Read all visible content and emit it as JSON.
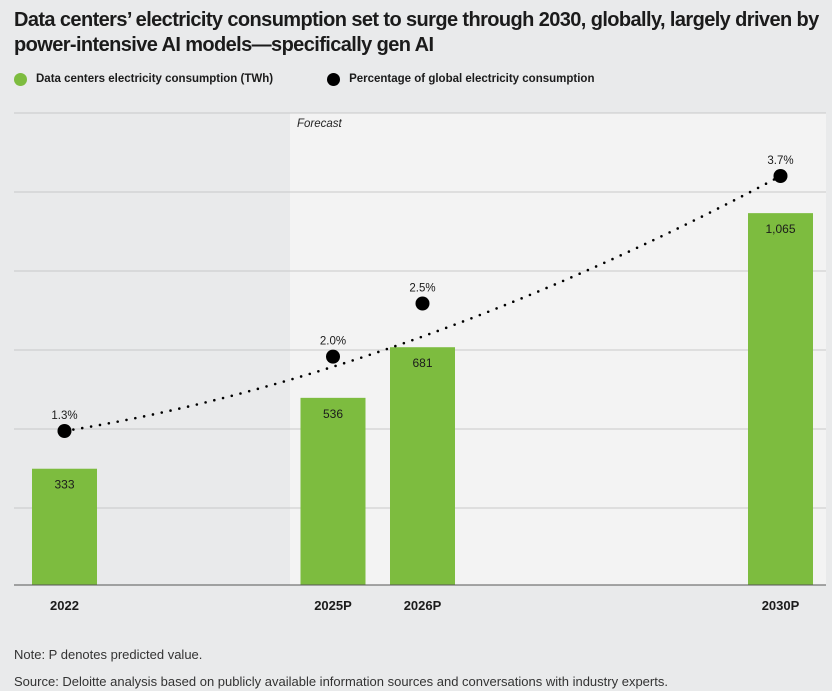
{
  "title": "Data centers’ electricity consumption set to surge through 2030, globally, largely driven by power-intensive AI models—specifically gen AI",
  "legend": {
    "bars": "Data centers electricity consumption (TWh)",
    "dots": "Percentage of global electricity consumption"
  },
  "colors": {
    "bar": "#7dbc3f",
    "dot": "#000000",
    "background": "#e9eaeb",
    "forecast_band": "#f3f3f3"
  },
  "forecast_label": "Forecast",
  "note": "Note: P denotes predicted value.",
  "source": "Source: Deloitte analysis based on publicly available information sources and conversations with industry experts.",
  "chart_data": {
    "type": "bar",
    "title": "Data centers’ electricity consumption set to surge through 2030, globally, largely driven by power-intensive AI models—specifically gen AI",
    "xlabel": "",
    "ylabel": "",
    "x": [
      2022,
      2025,
      2026,
      2030
    ],
    "categories": [
      "2022",
      "2025P",
      "2026P",
      "2030P"
    ],
    "forecast_from": 2025,
    "grid": true,
    "ylim": [
      0,
      1200
    ],
    "y2lim": [
      0,
      4.2
    ],
    "series": [
      {
        "name": "Data centers electricity consumption (TWh)",
        "type": "bar",
        "values": [
          333,
          536,
          681,
          1065
        ],
        "labels": [
          "333",
          "536",
          "681",
          "1,065"
        ]
      },
      {
        "name": "Percentage of global electricity consumption",
        "type": "scatter",
        "axis": "secondary",
        "values": [
          1.3,
          2.0,
          2.5,
          3.7
        ],
        "labels": [
          "1.3%",
          "2.0%",
          "2.5%",
          "3.7%"
        ],
        "trendline": "dotted"
      }
    ]
  }
}
